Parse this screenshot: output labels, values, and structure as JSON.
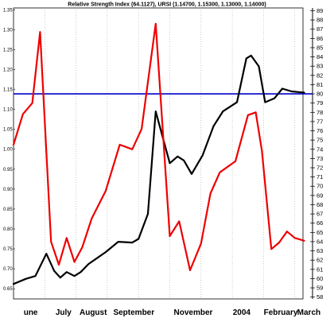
{
  "chart_data": {
    "type": "line",
    "title": "Relative Strength Index (64.1127), URSI (1.14700, 1.15300, 1.13000, 1.14000)",
    "x_categories": [
      "une",
      "July",
      "August",
      "September",
      "November",
      "2004",
      "February",
      "March"
    ],
    "left_axis": {
      "ticks": [
        "1.35",
        "1.30",
        "1.25",
        "1.20",
        "1.15",
        "1.10",
        "1.05",
        "1.00",
        "0.95",
        "0.90",
        "0.85",
        "0.80",
        "0.75",
        "0.70",
        "0.65"
      ],
      "range": [
        0.6245,
        1.3545
      ]
    },
    "right_axis": {
      "ticks": [
        "89",
        "88",
        "87",
        "86",
        "85",
        "84",
        "83",
        "82",
        "81",
        "80",
        "79",
        "78",
        "77",
        "76",
        "75",
        "74",
        "73",
        "72",
        "71",
        "70",
        "69",
        "68",
        "67",
        "66",
        "65",
        "64",
        "63",
        "62",
        "61",
        "60",
        "59",
        "58"
      ],
      "range": [
        57.8,
        89.3
      ]
    },
    "reference_line": {
      "axis": "right",
      "value": 80.0,
      "color": "#0000cc"
    },
    "series": [
      {
        "axis": "left",
        "color": "#000000",
        "points": [
          [
            0.0,
            0.662
          ],
          [
            0.4,
            0.675
          ],
          [
            0.7,
            0.682
          ],
          [
            1.05,
            0.738
          ],
          [
            1.3,
            0.695
          ],
          [
            1.5,
            0.678
          ],
          [
            1.7,
            0.692
          ],
          [
            1.95,
            0.682
          ],
          [
            2.15,
            0.692
          ],
          [
            2.4,
            0.712
          ],
          [
            2.95,
            0.742
          ],
          [
            3.35,
            0.768
          ],
          [
            3.8,
            0.766
          ],
          [
            4.0,
            0.775
          ],
          [
            4.3,
            0.838
          ],
          [
            4.55,
            1.095
          ],
          [
            5.0,
            0.965
          ],
          [
            5.25,
            0.982
          ],
          [
            5.45,
            0.972
          ],
          [
            5.7,
            0.938
          ],
          [
            6.05,
            0.985
          ],
          [
            6.4,
            1.058
          ],
          [
            6.7,
            1.095
          ],
          [
            7.15,
            1.118
          ],
          [
            7.45,
            1.228
          ],
          [
            7.6,
            1.235
          ],
          [
            7.85,
            1.208
          ],
          [
            8.05,
            1.118
          ],
          [
            8.35,
            1.128
          ],
          [
            8.6,
            1.152
          ],
          [
            8.9,
            1.145
          ],
          [
            9.3,
            1.142
          ]
        ]
      },
      {
        "axis": "right",
        "color": "#ee0000",
        "points": [
          [
            0.0,
            74.5
          ],
          [
            0.3,
            77.8
          ],
          [
            0.6,
            79.0
          ],
          [
            0.85,
            86.7
          ],
          [
            1.2,
            64.0
          ],
          [
            1.45,
            61.5
          ],
          [
            1.7,
            64.4
          ],
          [
            1.95,
            61.8
          ],
          [
            2.2,
            63.4
          ],
          [
            2.5,
            66.5
          ],
          [
            2.95,
            69.5
          ],
          [
            3.4,
            74.5
          ],
          [
            3.8,
            74.0
          ],
          [
            4.1,
            76.2
          ],
          [
            4.55,
            87.6
          ],
          [
            5.0,
            64.6
          ],
          [
            5.3,
            66.2
          ],
          [
            5.65,
            60.9
          ],
          [
            6.0,
            63.8
          ],
          [
            6.3,
            69.2
          ],
          [
            6.6,
            71.5
          ],
          [
            7.1,
            72.7
          ],
          [
            7.5,
            77.7
          ],
          [
            7.75,
            78.0
          ],
          [
            7.95,
            73.8
          ],
          [
            8.25,
            63.2
          ],
          [
            8.5,
            63.9
          ],
          [
            8.75,
            65.1
          ],
          [
            9.0,
            64.4
          ],
          [
            9.3,
            64.1
          ]
        ]
      }
    ]
  }
}
